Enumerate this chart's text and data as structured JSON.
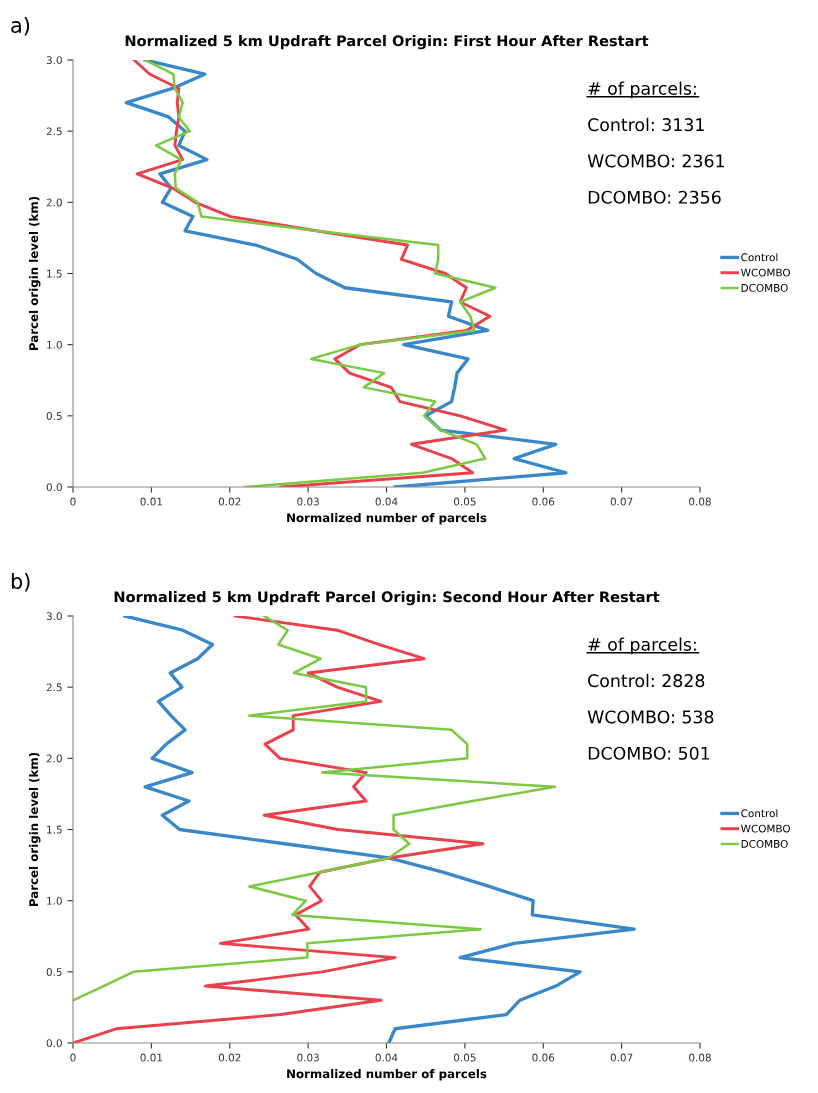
{
  "chart_data": [
    {
      "type": "line",
      "title": "Normalized 5 km Updraft Parcel Origin: First Hour After Restart",
      "xlabel": "Normalized number of parcels",
      "ylabel": "Parcel origin level (km)",
      "xlim": [
        0,
        0.08
      ],
      "xticks": [
        0,
        0.01,
        0.02,
        0.03,
        0.04,
        0.05,
        0.06,
        0.07,
        0.08
      ],
      "ylim": [
        0,
        3.0
      ],
      "yticks": [
        {
          "value": 0,
          "label": "0.0"
        },
        0.5,
        {
          "value": 1,
          "label": "1.0"
        },
        1.5,
        {
          "value": 2,
          "label": "2.0"
        },
        2.5,
        {
          "value": 3,
          "label": "3.0"
        }
      ],
      "legend": "right",
      "grid": false,
      "marker": "none",
      "line_style": "solid",
      "annotations": [
        "a)",
        "# of parcels:",
        "Control: 3131",
        "WCOMBO: 2361",
        "DCOMBO: 2356"
      ],
      "series": [
        {
          "name": "Control",
          "color": "#3a87c8",
          "x": [
            0.0411,
            0.0629,
            0.0563,
            0.0616,
            0.0469,
            0.045,
            0.0483,
            0.0487,
            0.049,
            0.0504,
            0.0422,
            0.0529,
            0.0479,
            0.0483,
            0.0347,
            0.031,
            0.0286,
            0.0233,
            0.0143,
            0.0153,
            0.0114,
            0.0125,
            0.0111,
            0.0171,
            0.0135,
            0.0143,
            0.0122,
            0.0068,
            0.0127,
            0.0168,
            0.0092
          ],
          "values": [
            0,
            0.1,
            0.2,
            0.3,
            0.4,
            0.5,
            0.6,
            0.7,
            0.8,
            0.9,
            1.0,
            1.1,
            1.2,
            1.3,
            1.4,
            1.5,
            1.6,
            1.7,
            1.8,
            1.9,
            2.0,
            2.1,
            2.2,
            2.3,
            2.4,
            2.5,
            2.6,
            2.7,
            2.8,
            2.9,
            3.0
          ]
        },
        {
          "name": "WCOMBO",
          "color": "#e8414b",
          "x": [
            0.0265,
            0.051,
            0.0483,
            0.0432,
            0.0552,
            0.0494,
            0.0417,
            0.0406,
            0.0353,
            0.0334,
            0.0366,
            0.0502,
            0.0532,
            0.0494,
            0.0502,
            0.0475,
            0.0419,
            0.0427,
            0.031,
            0.0201,
            0.0156,
            0.0127,
            0.0082,
            0.014,
            0.013,
            0.0132,
            0.0135,
            0.0133,
            0.0135,
            0.0098,
            0.0078
          ],
          "values": [
            0,
            0.1,
            0.2,
            0.3,
            0.4,
            0.5,
            0.6,
            0.7,
            0.8,
            0.9,
            1.0,
            1.1,
            1.2,
            1.3,
            1.4,
            1.5,
            1.6,
            1.7,
            1.8,
            1.9,
            2.0,
            2.1,
            2.2,
            2.3,
            2.4,
            2.5,
            2.6,
            2.7,
            2.8,
            2.9,
            3.0
          ]
        },
        {
          "name": "DCOMBO",
          "color": "#7bc843",
          "x": [
            0.022,
            0.0446,
            0.0526,
            0.0515,
            0.0469,
            0.0448,
            0.0462,
            0.0371,
            0.0397,
            0.0304,
            0.0366,
            0.0512,
            0.0507,
            0.0494,
            0.0539,
            0.0462,
            0.0466,
            0.0466,
            0.031,
            0.0164,
            0.0159,
            0.0131,
            0.013,
            0.0138,
            0.0106,
            0.0149,
            0.0135,
            0.014,
            0.013,
            0.0128,
            0.0092
          ],
          "values": [
            0,
            0.1,
            0.2,
            0.3,
            0.4,
            0.5,
            0.6,
            0.7,
            0.8,
            0.9,
            1.0,
            1.1,
            1.2,
            1.3,
            1.4,
            1.5,
            1.6,
            1.7,
            1.8,
            1.9,
            2.0,
            2.1,
            2.2,
            2.3,
            2.4,
            2.5,
            2.6,
            2.7,
            2.8,
            2.9,
            3.0
          ]
        }
      ]
    },
    {
      "type": "line",
      "title": "Normalized 5 km Updraft Parcel Origin: Second Hour After Restart",
      "xlabel": "Normalized number of parcels",
      "ylabel": "Parcel origin level (km)",
      "xlim": [
        0,
        0.08
      ],
      "xticks": [
        0,
        0.01,
        0.02,
        0.03,
        0.04,
        0.05,
        0.06,
        0.07,
        0.08
      ],
      "ylim": [
        0,
        3.0
      ],
      "yticks": [
        {
          "value": 0,
          "label": "0.0"
        },
        0.5,
        {
          "value": 1,
          "label": "1.0"
        },
        1.5,
        {
          "value": 2,
          "label": "2.0"
        },
        2.5,
        {
          "value": 3,
          "label": "3.0"
        }
      ],
      "legend": "right",
      "grid": false,
      "marker": "none",
      "line_style": "solid",
      "annotations": [
        "b)",
        "# of parcels:",
        "Control: 2828",
        "WCOMBO: 538",
        "DCOMBO: 501"
      ],
      "series": [
        {
          "name": "Control",
          "color": "#3a87c8",
          "x": [
            0.0403,
            0.0411,
            0.0553,
            0.057,
            0.0616,
            0.0647,
            0.0494,
            0.0563,
            0.0716,
            0.0586,
            0.0587,
            0.0531,
            0.0472,
            0.0403,
            0.027,
            0.0136,
            0.0114,
            0.0148,
            0.0092,
            0.0152,
            0.0101,
            0.0119,
            0.0143,
            0.0125,
            0.0109,
            0.0139,
            0.0124,
            0.0159,
            0.0178,
            0.014,
            0.0066
          ],
          "values": [
            0,
            0.1,
            0.2,
            0.3,
            0.4,
            0.5,
            0.6,
            0.7,
            0.8,
            0.9,
            1.0,
            1.1,
            1.2,
            1.3,
            1.4,
            1.5,
            1.6,
            1.7,
            1.8,
            1.9,
            2.0,
            2.1,
            2.2,
            2.3,
            2.4,
            2.5,
            2.6,
            2.7,
            2.8,
            2.9,
            3.0
          ]
        },
        {
          "name": "WCOMBO",
          "color": "#e8414b",
          "x": [
            0.0,
            0.0055,
            0.0265,
            0.0393,
            0.0169,
            0.0318,
            0.0411,
            0.0188,
            0.0301,
            0.0284,
            0.0317,
            0.0302,
            0.0315,
            0.0403,
            0.0523,
            0.0338,
            0.0244,
            0.0374,
            0.0358,
            0.0374,
            0.0264,
            0.0245,
            0.0281,
            0.0281,
            0.0393,
            0.0337,
            0.03,
            0.0448,
            0.039,
            0.0337,
            0.0207
          ],
          "values": [
            0,
            0.1,
            0.2,
            0.3,
            0.4,
            0.5,
            0.6,
            0.7,
            0.8,
            0.9,
            1.0,
            1.1,
            1.2,
            1.3,
            1.4,
            1.5,
            1.6,
            1.7,
            1.8,
            1.9,
            2.0,
            2.1,
            2.2,
            2.3,
            2.4,
            2.5,
            2.6,
            2.7,
            2.8,
            2.9,
            3.0
          ]
        },
        {
          "name": "DCOMBO",
          "color": "#7bc843",
          "x": [
            0.0,
            0.0039,
            0.0077,
            0.0299,
            0.0299,
            0.052,
            0.028,
            0.0297,
            0.0225,
            0.0315,
            0.0403,
            0.0429,
            0.0409,
            0.0409,
            0.051,
            0.0615,
            0.0318,
            0.0503,
            0.0503,
            0.0483,
            0.0225,
            0.0374,
            0.0374,
            0.0282,
            0.0316,
            0.0262,
            0.0274,
            0.0244
          ],
          "values": [
            0.3,
            0.4,
            0.5,
            0.6,
            0.7,
            0.8,
            0.9,
            1.0,
            1.1,
            1.2,
            1.3,
            1.4,
            1.5,
            1.6,
            1.7,
            1.8,
            1.9,
            2.0,
            2.1,
            2.2,
            2.3,
            2.4,
            2.5,
            2.6,
            2.7,
            2.8,
            2.9,
            3.0
          ]
        }
      ]
    }
  ]
}
